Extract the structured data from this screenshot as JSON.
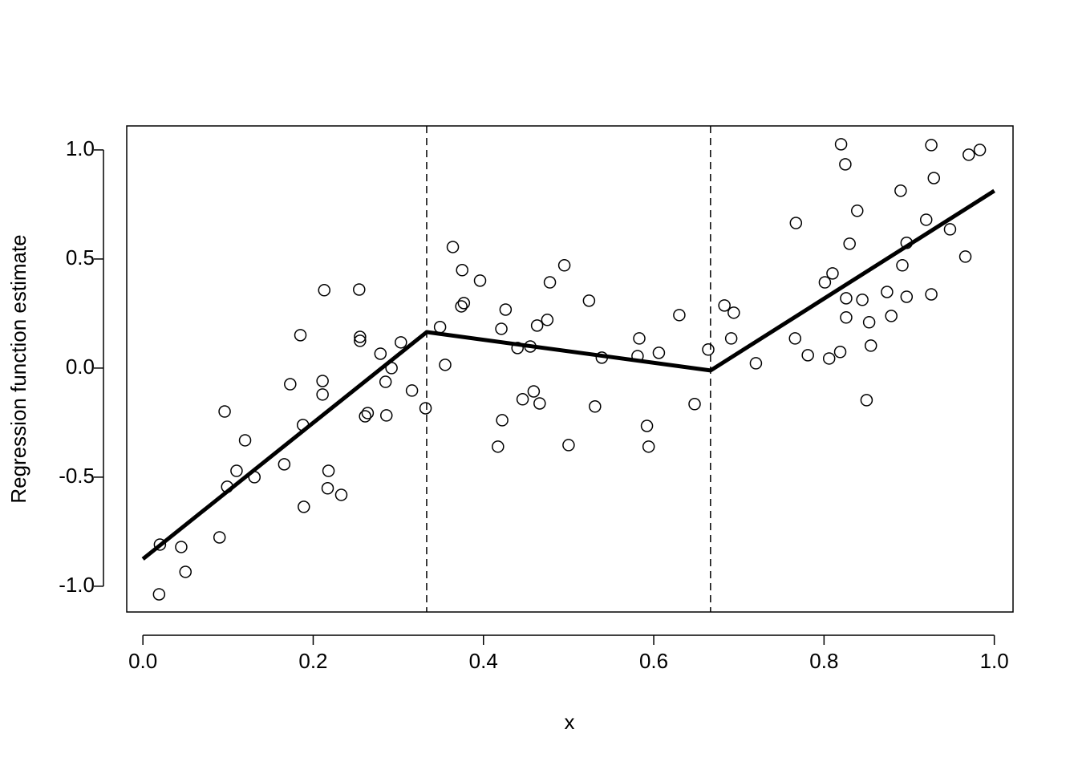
{
  "chart_data": {
    "type": "scatter",
    "xlabel": "x",
    "ylabel": "Regression function estimate",
    "xlim": [
      -0.019,
      1.022
    ],
    "ylim": [
      -1.118,
      1.11
    ],
    "xticks": [
      {
        "value": 0,
        "label": "0.0"
      },
      {
        "value": 0.2,
        "label": "0.2"
      },
      {
        "value": 0.4,
        "label": "0.4"
      },
      {
        "value": 0.6,
        "label": "0.6"
      },
      {
        "value": 0.8,
        "label": "0.8"
      },
      {
        "value": 1,
        "label": "1.0"
      }
    ],
    "yticks": [
      {
        "value": -1,
        "label": "-1.0"
      },
      {
        "value": -0.5,
        "label": "-0.5"
      },
      {
        "value": 0,
        "label": "0.0"
      },
      {
        "value": 0.5,
        "label": "0.5"
      },
      {
        "value": 1,
        "label": "1.0"
      }
    ],
    "vlines": [
      0.3333,
      0.6667
    ],
    "series": [
      {
        "type": "scatter",
        "color": "#000000",
        "x": [
          0.02,
          0.019,
          0.045,
          0.05,
          0.09,
          0.096,
          0.099,
          0.11,
          0.12,
          0.131,
          0.166,
          0.173,
          0.185,
          0.188,
          0.189,
          0.211,
          0.211,
          0.213,
          0.217,
          0.218,
          0.233,
          0.254,
          0.255,
          0.255,
          0.261,
          0.264,
          0.279,
          0.285,
          0.286,
          0.292,
          0.303,
          0.316,
          0.332,
          0.349,
          0.355,
          0.364,
          0.375,
          0.374,
          0.377,
          0.396,
          0.417,
          0.422,
          0.421,
          0.426,
          0.44,
          0.446,
          0.455,
          0.459,
          0.463,
          0.466,
          0.475,
          0.478,
          0.495,
          0.5,
          0.524,
          0.531,
          0.539,
          0.581,
          0.583,
          0.592,
          0.594,
          0.606,
          0.63,
          0.648,
          0.664,
          0.683,
          0.691,
          0.694,
          0.72,
          0.766,
          0.767,
          0.781,
          0.801,
          0.806,
          0.81,
          0.819,
          0.82,
          0.825,
          0.826,
          0.826,
          0.83,
          0.839,
          0.845,
          0.85,
          0.853,
          0.855,
          0.874,
          0.879,
          0.89,
          0.892,
          0.897,
          0.897,
          0.92,
          0.926,
          0.926,
          0.929,
          0.948,
          0.966,
          0.97,
          0.983
        ],
        "values": [
          -0.809,
          -1.037,
          -0.82,
          -0.934,
          -0.776,
          -0.199,
          -0.544,
          -0.471,
          -0.331,
          -0.5,
          -0.441,
          -0.074,
          0.151,
          -0.261,
          -0.636,
          -0.059,
          -0.121,
          0.357,
          -0.551,
          -0.471,
          -0.581,
          0.36,
          0.143,
          0.125,
          -0.221,
          -0.206,
          0.066,
          -0.063,
          -0.217,
          0,
          0.118,
          -0.103,
          -0.184,
          0.188,
          0.015,
          0.555,
          0.449,
          0.283,
          0.298,
          0.401,
          -0.36,
          -0.239,
          0.18,
          0.268,
          0.092,
          -0.143,
          0.099,
          -0.107,
          0.195,
          -0.162,
          0.221,
          0.393,
          0.471,
          -0.353,
          0.309,
          -0.176,
          0.048,
          0.055,
          0.136,
          -0.265,
          -0.36,
          0.07,
          0.243,
          -0.165,
          0.085,
          0.287,
          0.136,
          0.254,
          0.022,
          0.136,
          0.665,
          0.059,
          0.393,
          0.044,
          0.434,
          0.074,
          1.026,
          0.934,
          0.32,
          0.232,
          0.57,
          0.721,
          0.313,
          -0.147,
          0.21,
          0.103,
          0.349,
          0.239,
          0.813,
          0.471,
          0.574,
          0.327,
          0.68,
          1.022,
          0.338,
          0.871,
          0.636,
          0.511,
          0.978,
          1.0
        ]
      },
      {
        "type": "line",
        "color": "#000000",
        "x": [
          0,
          0.3333,
          0.6667,
          1
        ],
        "values": [
          -0.875,
          0.165,
          -0.011,
          0.8125
        ]
      }
    ]
  }
}
